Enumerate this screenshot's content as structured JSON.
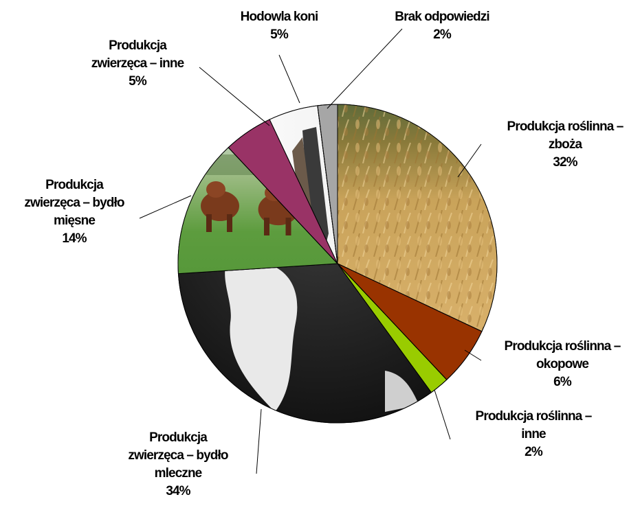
{
  "chart_data": {
    "type": "pie",
    "title": "",
    "slices": [
      {
        "label_lines": [
          "Produkcja roślinna –",
          "zboża"
        ],
        "value": 32,
        "value_label": "32%",
        "color": "#c79a4e",
        "texture": "wheat"
      },
      {
        "label_lines": [
          "Produkcja roślinna –",
          "okopowe"
        ],
        "value": 6,
        "value_label": "6%",
        "color": "#993300",
        "texture": "solid"
      },
      {
        "label_lines": [
          "Produkcja roślinna –",
          "inne"
        ],
        "value": 2,
        "value_label": "2%",
        "color": "#99cc00",
        "texture": "solid"
      },
      {
        "label_lines": [
          "Produkcja",
          "zwierzęca – bydło",
          "mleczne"
        ],
        "value": 34,
        "value_label": "34%",
        "color": "#2a2a2a",
        "texture": "cowhide"
      },
      {
        "label_lines": [
          "Produkcja",
          "zwierzęca – bydło",
          "mięsne"
        ],
        "value": 14,
        "value_label": "14%",
        "color": "#4e9a3a",
        "texture": "pasture"
      },
      {
        "label_lines": [
          "Produkcja",
          "zwierzęca – inne"
        ],
        "value": 5,
        "value_label": "5%",
        "color": "#993366",
        "texture": "solid"
      },
      {
        "label_lines": [
          "Hodowla koni"
        ],
        "value": 5,
        "value_label": "5%",
        "color": "#f4f4f4",
        "texture": "horse"
      },
      {
        "label_lines": [
          "Brak odpowiedzi"
        ],
        "value": 2,
        "value_label": "2%",
        "color": "#a6a6a6",
        "texture": "solid"
      }
    ],
    "legend": "none",
    "start": "top-clockwise"
  }
}
